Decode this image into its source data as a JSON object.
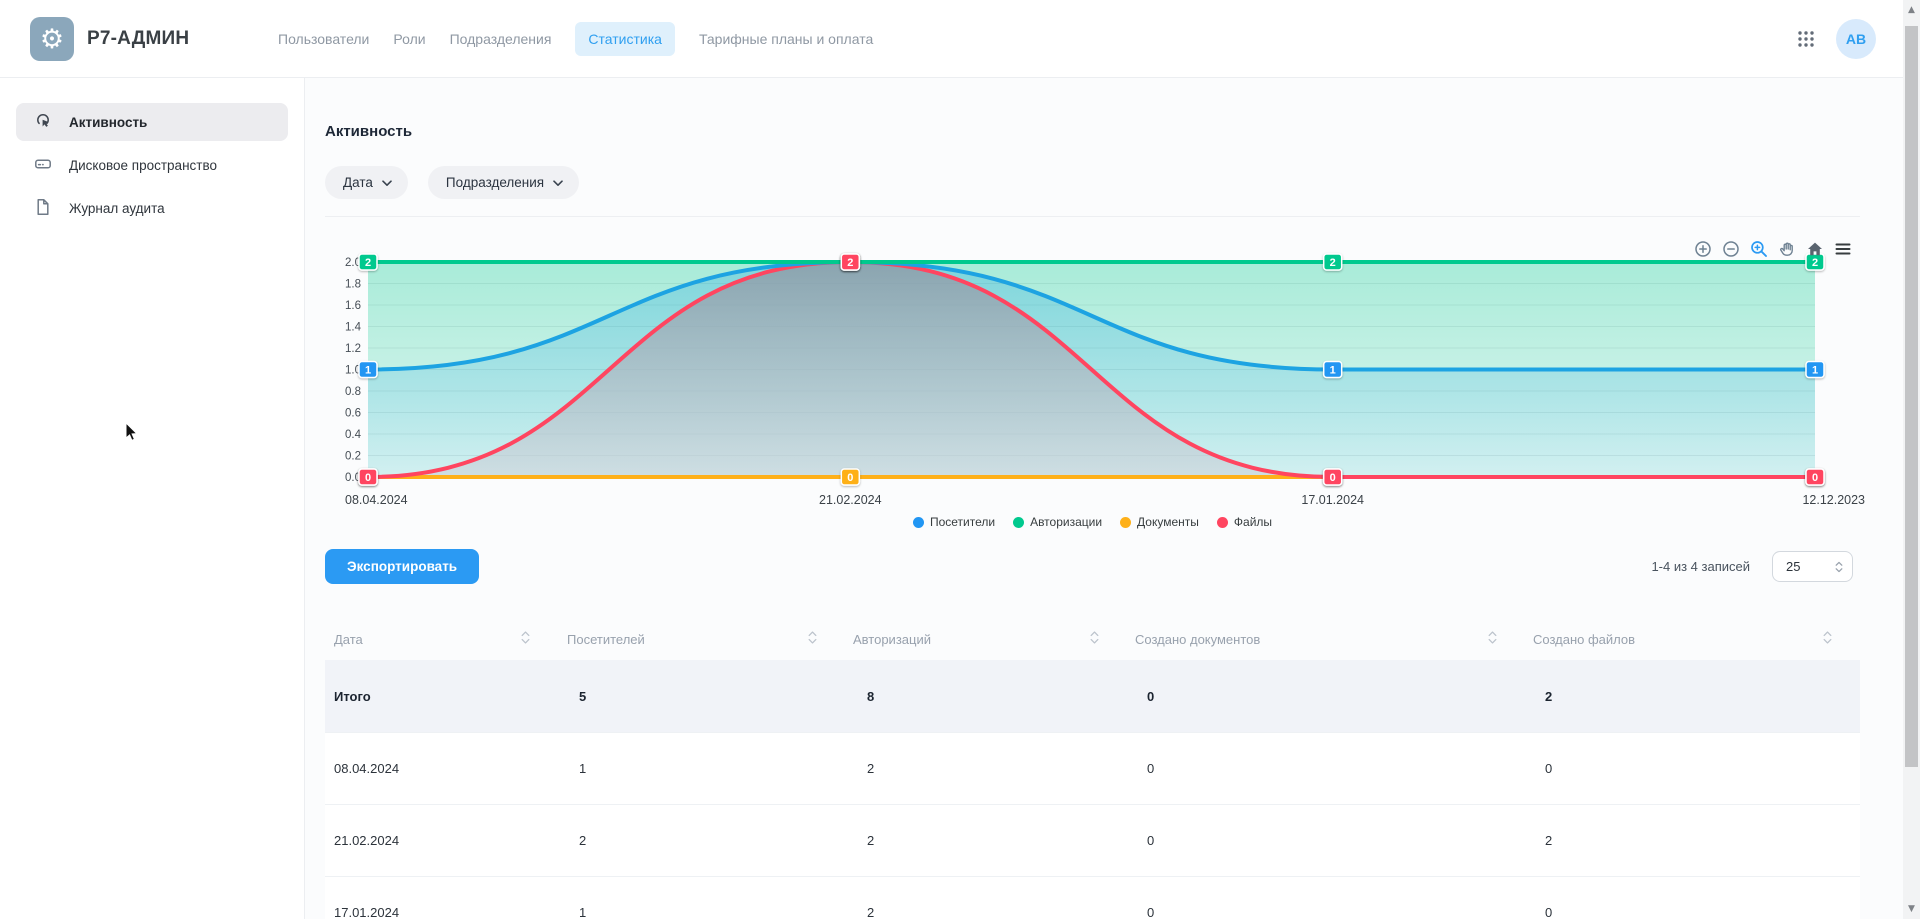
{
  "header": {
    "brand": "Р7-АДМИН",
    "logo_icon": "gear-icon",
    "nav": [
      {
        "label": "Пользователи",
        "active": false
      },
      {
        "label": "Роли",
        "active": false
      },
      {
        "label": "Подразделения",
        "active": false
      },
      {
        "label": "Статистика",
        "active": true
      },
      {
        "label": "Тарифные планы и оплата",
        "active": false
      }
    ],
    "apps_icon": "apps-grid-icon",
    "avatar_initials": "АВ"
  },
  "sidebar": {
    "items": [
      {
        "label": "Активность",
        "icon": "tap-activity-icon",
        "active": true
      },
      {
        "label": "Дисковое пространство",
        "icon": "disk-drive-icon",
        "active": false
      },
      {
        "label": "Журнал аудита",
        "icon": "document-icon",
        "active": false
      }
    ]
  },
  "main": {
    "title": "Активность",
    "filters": [
      {
        "label": "Дата",
        "icon": "chevron-down-icon"
      },
      {
        "label": "Подразделения",
        "icon": "chevron-down-icon"
      }
    ],
    "toolbar_icons": [
      "zoom-in-icon",
      "zoom-out-icon",
      "selection-zoom-icon",
      "pan-hand-icon",
      "home-icon",
      "menu-icon"
    ],
    "export_label": "Экспортировать",
    "records_summary": "1-4 из 4 записей",
    "page_size_value": "25"
  },
  "table": {
    "columns": [
      "Дата",
      "Посетителей",
      "Авторизаций",
      "Создано документов",
      "Создано файлов"
    ],
    "total_row": [
      "Итого",
      "5",
      "8",
      "0",
      "2"
    ],
    "rows": [
      [
        "08.04.2024",
        "1",
        "2",
        "0",
        "0"
      ],
      [
        "21.02.2024",
        "2",
        "2",
        "0",
        "2"
      ],
      [
        "17.01.2024",
        "1",
        "2",
        "0",
        "0"
      ]
    ]
  },
  "chart_data": {
    "type": "area",
    "x": [
      "08.04.2024",
      "21.02.2024",
      "17.01.2024",
      "12.12.2023"
    ],
    "series": [
      {
        "name": "Посетители",
        "color": "#2196F3",
        "line_color": "#1DA3E2",
        "fill": "blue",
        "values": [
          1,
          2,
          1,
          1
        ]
      },
      {
        "name": "Авторизации",
        "color": "#00C98E",
        "line_color": "#00C98E",
        "fill": "green",
        "values": [
          2,
          2,
          2,
          2
        ]
      },
      {
        "name": "Документы",
        "color": "#FEB019",
        "line_color": "#FEB019",
        "fill": "none",
        "values": [
          0,
          0,
          0,
          0
        ]
      },
      {
        "name": "Файлы",
        "color": "#FF4560",
        "line_color": "#FF4560",
        "fill": "grey",
        "values": [
          0,
          2,
          0,
          0
        ]
      }
    ],
    "ylim": [
      0,
      2
    ],
    "ytick_step": 0.2,
    "grid": true,
    "curve": "smooth",
    "legend_position": "bottom",
    "point_labels": true
  }
}
